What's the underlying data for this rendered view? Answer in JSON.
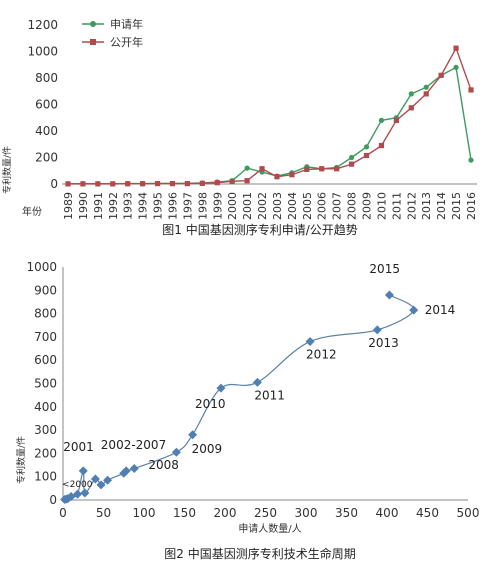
{
  "chart_data": [
    {
      "type": "line",
      "title": "",
      "caption": "图1  中国基因测序专利申请/公开趋势",
      "xlabel": "年份",
      "ylabel": "专利数量/件",
      "ylim": [
        0,
        1200
      ],
      "yticks": [
        0,
        200,
        400,
        600,
        800,
        1000,
        1200
      ],
      "grid": false,
      "legend_position": "top-left",
      "categories": [
        "1989",
        "1990",
        "1991",
        "1992",
        "1993",
        "1994",
        "1995",
        "1996",
        "1997",
        "1998",
        "1999",
        "2000",
        "2001",
        "2002",
        "2003",
        "2004",
        "2005",
        "2006",
        "2007",
        "2008",
        "2009",
        "2010",
        "2011",
        "2012",
        "2013",
        "2014",
        "2015",
        "2016"
      ],
      "series": [
        {
          "name": "申请年",
          "color": "#3f9a5f",
          "marker": "circle",
          "values": [
            2,
            2,
            2,
            2,
            3,
            3,
            4,
            4,
            5,
            8,
            15,
            25,
            120,
            90,
            60,
            85,
            130,
            115,
            125,
            200,
            280,
            480,
            500,
            680,
            730,
            820,
            880,
            180
          ]
        },
        {
          "name": "公开年",
          "color": "#b24a4d",
          "marker": "square",
          "values": [
            1,
            1,
            1,
            1,
            2,
            2,
            3,
            3,
            3,
            5,
            10,
            20,
            25,
            115,
            55,
            70,
            110,
            115,
            115,
            150,
            215,
            290,
            480,
            575,
            680,
            820,
            1025,
            710
          ]
        }
      ]
    },
    {
      "type": "scatter",
      "title": "",
      "caption": "图2  中国基因测序专利技术生命周期",
      "xlabel": "申请人数量/人",
      "ylabel": "专利数量/件",
      "xlim": [
        0,
        500
      ],
      "ylim": [
        0,
        1000
      ],
      "xticks": [
        0,
        50,
        100,
        150,
        200,
        250,
        300,
        350,
        400,
        450,
        500
      ],
      "yticks": [
        0,
        100,
        200,
        300,
        400,
        500,
        600,
        700,
        800,
        900,
        1000
      ],
      "grid": false,
      "color": "#4f7fb3",
      "marker": "diamond",
      "points": [
        {
          "x": 2,
          "y": 2
        },
        {
          "x": 4,
          "y": 4
        },
        {
          "x": 6,
          "y": 6
        },
        {
          "x": 10,
          "y": 15
        },
        {
          "x": 18,
          "y": 25
        },
        {
          "x": 25,
          "y": 125
        },
        {
          "x": 27,
          "y": 30
        },
        {
          "x": 40,
          "y": 90
        },
        {
          "x": 47,
          "y": 65
        },
        {
          "x": 55,
          "y": 85
        },
        {
          "x": 75,
          "y": 115
        },
        {
          "x": 78,
          "y": 125
        },
        {
          "x": 88,
          "y": 135
        },
        {
          "x": 140,
          "y": 205
        },
        {
          "x": 160,
          "y": 280
        },
        {
          "x": 195,
          "y": 480
        },
        {
          "x": 240,
          "y": 505
        },
        {
          "x": 305,
          "y": 680
        },
        {
          "x": 388,
          "y": 730
        },
        {
          "x": 433,
          "y": 815
        },
        {
          "x": 403,
          "y": 880
        }
      ],
      "annotations": [
        {
          "text": "2001",
          "x": 25,
          "y": 125
        },
        {
          "text": "<2000",
          "x": 5,
          "y": 5
        },
        {
          "text": "2002-2007",
          "x": 80,
          "y": 125
        },
        {
          "text": "2008",
          "x": 140,
          "y": 205
        },
        {
          "text": "2009",
          "x": 160,
          "y": 280
        },
        {
          "text": "2010",
          "x": 195,
          "y": 480
        },
        {
          "text": "2011",
          "x": 240,
          "y": 505
        },
        {
          "text": "2012",
          "x": 305,
          "y": 680
        },
        {
          "text": "2013",
          "x": 388,
          "y": 730
        },
        {
          "text": "2014",
          "x": 433,
          "y": 815
        },
        {
          "text": "2015",
          "x": 403,
          "y": 880
        }
      ]
    }
  ]
}
